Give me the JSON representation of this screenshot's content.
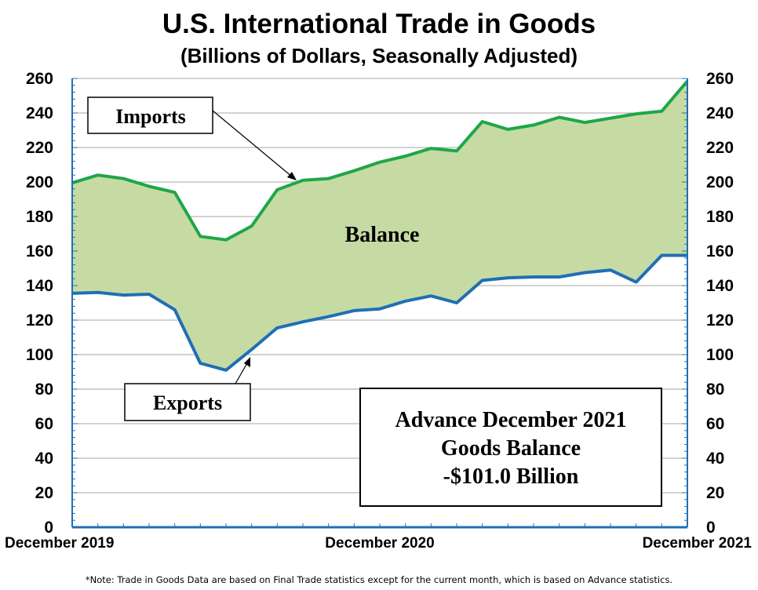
{
  "colors": {
    "imports_line": "#1fa64a",
    "exports_line": "#1f6fb5",
    "balance_fill": "#c6dba3",
    "grid": "#a6a6a6",
    "axis": "#1f6fb5"
  },
  "chart_data": {
    "type": "area",
    "title": "U.S. International Trade in Goods",
    "subtitle": "(Billions of Dollars, Seasonally Adjusted)",
    "xlabel": "",
    "ylabel": "",
    "ylim": [
      0,
      260
    ],
    "yticks": [
      "0",
      "20",
      "40",
      "60",
      "80",
      "100",
      "120",
      "140",
      "160",
      "180",
      "200",
      "220",
      "240",
      "260"
    ],
    "x_tick_labels": [
      "December 2019",
      "December 2020",
      "December 2021"
    ],
    "x_tick_indices": [
      0,
      12,
      24
    ],
    "grid": true,
    "series": [
      {
        "name": "Imports",
        "values": [
          199.5,
          204,
          202,
          197.5,
          194,
          168.5,
          166.5,
          174.5,
          195.5,
          201,
          202,
          206.5,
          211.5,
          215,
          219.5,
          218,
          235,
          230.5,
          233,
          237.5,
          234.5,
          237,
          239.5,
          241,
          258.5
        ]
      },
      {
        "name": "Exports",
        "values": [
          135.5,
          136,
          134.5,
          135,
          126,
          95,
          91,
          103,
          115.5,
          119,
          122,
          125.5,
          126.5,
          131,
          134,
          130,
          143,
          144.5,
          145,
          145,
          147.5,
          149,
          142,
          157.5,
          157.5
        ]
      }
    ],
    "annotations": {
      "imports_label": "Imports",
      "exports_label": "Exports",
      "balance_label": "Balance",
      "info_box": [
        "Advance December 2021",
        "Goods Balance",
        "-$101.0 Billion"
      ]
    },
    "note": "*Note: Trade in Goods Data are based on Final Trade statistics except for the current month,  which is based on Advance statistics."
  }
}
